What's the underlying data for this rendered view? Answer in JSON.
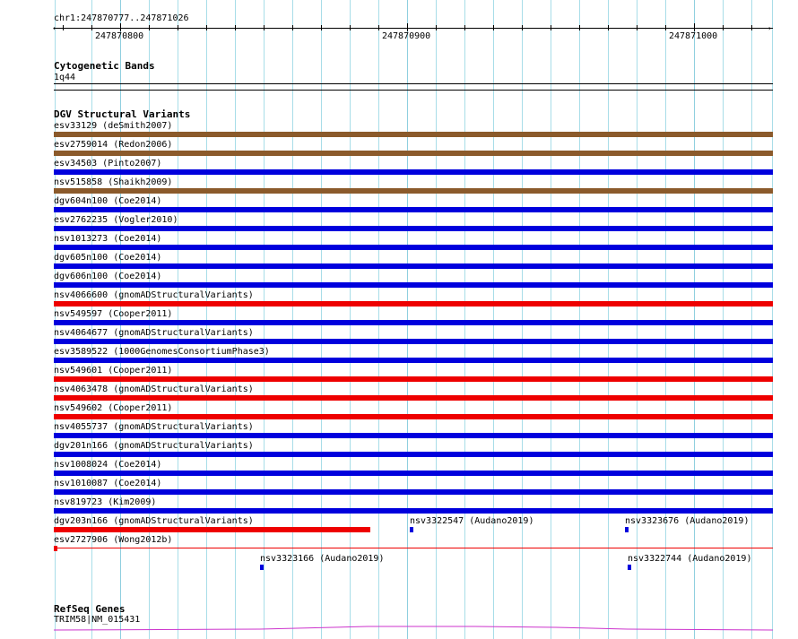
{
  "ruler": {
    "location": "chr1:247870777..247871026",
    "tick_labels": [
      "247870800",
      "247870900",
      "247871000"
    ]
  },
  "cytoband": {
    "title": "Cytogenetic Bands",
    "band": "1q44"
  },
  "dgv": {
    "title": "DGV Structural Variants",
    "colors": {
      "brown": "#8b5a2b",
      "blue": "#0000dd",
      "red": "#ee0000"
    },
    "variants": [
      {
        "label": "esv33129 (deSmith2007)",
        "color": "brown"
      },
      {
        "label": "esv2759014 (Redon2006)",
        "color": "brown"
      },
      {
        "label": "esv34503 (Pinto2007)",
        "color": "blue"
      },
      {
        "label": "nsv515858 (Shaikh2009)",
        "color": "brown"
      },
      {
        "label": "dgv604n100 (Coe2014)",
        "color": "blue"
      },
      {
        "label": "esv2762235 (Vogler2010)",
        "color": "blue"
      },
      {
        "label": "nsv1013273 (Coe2014)",
        "color": "blue"
      },
      {
        "label": "dgv605n100 (Coe2014)",
        "color": "blue"
      },
      {
        "label": "dgv606n100 (Coe2014)",
        "color": "blue"
      },
      {
        "label": "nsv4066600 (gnomADStructuralVariants)",
        "color": "red"
      },
      {
        "label": "nsv549597 (Cooper2011)",
        "color": "blue"
      },
      {
        "label": "nsv4064677 (gnomADStructuralVariants)",
        "color": "blue"
      },
      {
        "label": "esv3589522 (1000GenomesConsortiumPhase3)",
        "color": "blue"
      },
      {
        "label": "nsv549601 (Cooper2011)",
        "color": "red"
      },
      {
        "label": "nsv4063478 (gnomADStructuralVariants)",
        "color": "red"
      },
      {
        "label": "nsv549602 (Cooper2011)",
        "color": "red"
      },
      {
        "label": "nsv4055737 (gnomADStructuralVariants)",
        "color": "blue"
      },
      {
        "label": "dgv201n166 (gnomADStructuralVariants)",
        "color": "blue"
      },
      {
        "label": "nsv1008024 (Coe2014)",
        "color": "blue"
      },
      {
        "label": "nsv1010087 (Coe2014)",
        "color": "blue"
      },
      {
        "label": "nsv819723 (Kim2009)",
        "color": "blue"
      }
    ],
    "small": {
      "dgv203n166": "dgv203n166 (gnomADStructuralVariants)",
      "nsv3322547": "nsv3322547 (Audano2019)",
      "nsv3323676": "nsv3323676 (Audano2019)",
      "esv2727906": "esv2727906 (Wong2012b)",
      "nsv3323166": "nsv3323166 (Audano2019)",
      "nsv3322744": "nsv3322744 (Audano2019)"
    }
  },
  "refseq": {
    "title": "RefSeq Genes",
    "gene": "TRIM58|NM_015431",
    "color": "#cc33cc"
  }
}
